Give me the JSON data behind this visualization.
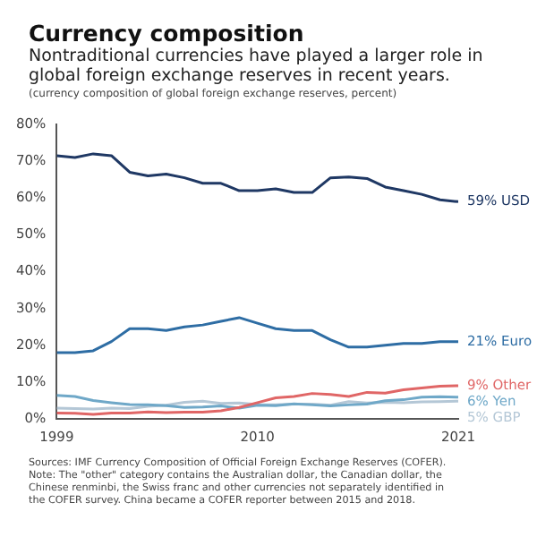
{
  "chart_data": {
    "type": "line",
    "title": "Currency composition",
    "subtitle": "Nontraditional currencies have played a larger role in global foreign exchange reserves in recent years.",
    "ylabel": "(currency composition of global foreign exchange reserves, percent)",
    "x": [
      1999,
      2000,
      2001,
      2002,
      2003,
      2004,
      2005,
      2006,
      2007,
      2008,
      2009,
      2010,
      2011,
      2012,
      2013,
      2014,
      2015,
      2016,
      2017,
      2018,
      2019,
      2020,
      2021
    ],
    "series": [
      {
        "name": "59% USD",
        "color": "#1f3864",
        "values": [
          71.5,
          71,
          72,
          71.5,
          67,
          66,
          66.5,
          65.5,
          64,
          64,
          62,
          62,
          62.5,
          61.5,
          61.5,
          65.5,
          65.7,
          65.3,
          63,
          62,
          61,
          59.5,
          59
        ]
      },
      {
        "name": "21% Euro",
        "color": "#2e6da4",
        "values": [
          18,
          18,
          18.5,
          21,
          24.5,
          24.5,
          24,
          25,
          25.5,
          26.5,
          27.5,
          26,
          24.5,
          24,
          24,
          21.5,
          19.5,
          19.5,
          20,
          20.5,
          20.5,
          21,
          21
        ]
      },
      {
        "name": "9% Other",
        "color": "#e06666",
        "values": [
          1.6,
          1.5,
          1.2,
          1.6,
          1.6,
          1.9,
          1.7,
          1.8,
          1.8,
          2.2,
          3.1,
          4.4,
          5.7,
          6.1,
          6.9,
          6.6,
          6.1,
          7.2,
          7,
          7.9,
          8.4,
          8.9,
          9
        ]
      },
      {
        "name": "6% Yen",
        "color": "#6fa8c8",
        "values": [
          6.4,
          6.1,
          5,
          4.4,
          3.9,
          3.8,
          3.6,
          3.1,
          3.2,
          3.5,
          2.9,
          3.7,
          3.6,
          4.1,
          3.8,
          3.5,
          3.8,
          4,
          4.9,
          5.2,
          5.9,
          6,
          5.9
        ]
      },
      {
        "name": "5% GBP",
        "color": "#b4c7d6",
        "values": [
          2.9,
          2.8,
          2.7,
          2.9,
          2.8,
          3.4,
          3.7,
          4.5,
          4.8,
          4.2,
          4.3,
          3.9,
          3.8,
          4,
          4,
          3.7,
          4.7,
          4.3,
          4.5,
          4.4,
          4.6,
          4.7,
          4.8
        ]
      }
    ],
    "xlim": [
      1999,
      2021
    ],
    "xticks": [
      1999,
      2010,
      2021
    ],
    "ylim": [
      0,
      80
    ],
    "yticks": [
      {
        "value": 0,
        "label": "0%"
      },
      {
        "value": 10,
        "label": "10%"
      },
      {
        "value": 20,
        "label": "20%"
      },
      {
        "value": 30,
        "label": "30%"
      },
      {
        "value": 40,
        "label": "40%"
      },
      {
        "value": 50,
        "label": "50%"
      },
      {
        "value": 60,
        "label": "60%"
      },
      {
        "value": 70,
        "label": "70%"
      },
      {
        "value": 80,
        "label": "80%"
      }
    ],
    "grid": false,
    "legend": false,
    "marker": "none",
    "line_style": "solid",
    "annotations": [
      "Sources: IMF Currency Composition of Official Foreign Exchange Reserves (COFER).",
      "Note: The \"other\" category contains the Australian dollar, the Canadian dollar, the Chinese renminbi, the Swiss franc and other currencies not separately identified in the COFER survey. China became a COFER reporter between 2015 and 2018."
    ]
  }
}
